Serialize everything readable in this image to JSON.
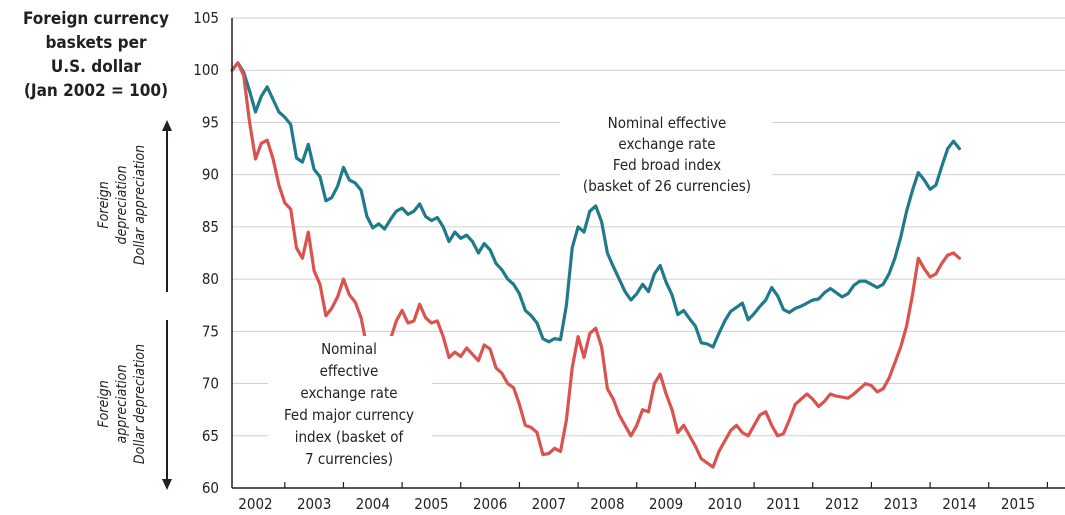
{
  "chart_data": {
    "type": "line",
    "ylabel_lines": [
      "Foreign currency",
      "baskets per",
      "U.S. dollar",
      "(Jan 2002 = 100)"
    ],
    "ylim": [
      60,
      105
    ],
    "yticks": [
      60,
      65,
      70,
      75,
      80,
      85,
      90,
      95,
      100,
      105
    ],
    "xlim": [
      2001.6,
      2015.8
    ],
    "xticks": [
      "2002",
      "2003",
      "2004",
      "2005",
      "2006",
      "2007",
      "2008",
      "2009",
      "2010",
      "2011",
      "2012",
      "2013",
      "2014",
      "2015"
    ],
    "grid": true,
    "upper_side_label": [
      "Foreign",
      "depreciation",
      "Dollar appreciation"
    ],
    "lower_side_label": [
      "Foreign",
      "appreciation",
      "Dollar depreciation"
    ],
    "series": [
      {
        "label_lines": [
          "Nominal effective",
          "exchange rate",
          "Fed broad index",
          "(basket of 26 currencies)"
        ],
        "color": "#1f7a8c",
        "points": [
          [
            2001.6,
            100.0
          ],
          [
            2001.7,
            100.7
          ],
          [
            2001.8,
            99.8
          ],
          [
            2001.9,
            98.0
          ],
          [
            2002.0,
            96.0
          ],
          [
            2002.1,
            97.5
          ],
          [
            2002.2,
            98.4
          ],
          [
            2002.3,
            97.2
          ],
          [
            2002.4,
            96.0
          ],
          [
            2002.5,
            95.5
          ],
          [
            2002.6,
            94.8
          ],
          [
            2002.7,
            91.6
          ],
          [
            2002.8,
            91.2
          ],
          [
            2002.9,
            92.9
          ],
          [
            2003.0,
            90.5
          ],
          [
            2003.1,
            89.8
          ],
          [
            2003.2,
            87.5
          ],
          [
            2003.3,
            87.8
          ],
          [
            2003.4,
            88.9
          ],
          [
            2003.5,
            90.7
          ],
          [
            2003.6,
            89.5
          ],
          [
            2003.7,
            89.2
          ],
          [
            2003.8,
            88.5
          ],
          [
            2003.9,
            86.0
          ],
          [
            2004.0,
            84.9
          ],
          [
            2004.1,
            85.3
          ],
          [
            2004.2,
            84.8
          ],
          [
            2004.3,
            85.7
          ],
          [
            2004.4,
            86.5
          ],
          [
            2004.5,
            86.8
          ],
          [
            2004.6,
            86.2
          ],
          [
            2004.7,
            86.5
          ],
          [
            2004.8,
            87.2
          ],
          [
            2004.9,
            86.0
          ],
          [
            2005.0,
            85.6
          ],
          [
            2005.1,
            85.9
          ],
          [
            2005.2,
            85.0
          ],
          [
            2005.3,
            83.6
          ],
          [
            2005.4,
            84.5
          ],
          [
            2005.5,
            83.9
          ],
          [
            2005.6,
            84.2
          ],
          [
            2005.7,
            83.6
          ],
          [
            2005.8,
            82.5
          ],
          [
            2005.9,
            83.4
          ],
          [
            2006.0,
            82.8
          ],
          [
            2006.1,
            81.5
          ],
          [
            2006.2,
            80.9
          ],
          [
            2006.3,
            80.0
          ],
          [
            2006.4,
            79.5
          ],
          [
            2006.5,
            78.6
          ],
          [
            2006.6,
            77.0
          ],
          [
            2006.7,
            76.5
          ],
          [
            2006.8,
            75.8
          ],
          [
            2006.9,
            74.3
          ],
          [
            2007.0,
            74.0
          ],
          [
            2007.1,
            74.3
          ],
          [
            2007.2,
            74.2
          ],
          [
            2007.3,
            77.5
          ],
          [
            2007.4,
            83.0
          ],
          [
            2007.5,
            85.0
          ],
          [
            2007.6,
            84.5
          ],
          [
            2007.7,
            86.5
          ],
          [
            2007.8,
            87.0
          ],
          [
            2007.9,
            85.5
          ],
          [
            2008.0,
            82.5
          ],
          [
            2008.1,
            81.2
          ],
          [
            2008.2,
            80.0
          ],
          [
            2008.3,
            78.8
          ],
          [
            2008.4,
            78.0
          ],
          [
            2008.5,
            78.6
          ],
          [
            2008.6,
            79.5
          ],
          [
            2008.7,
            78.8
          ],
          [
            2008.8,
            80.5
          ],
          [
            2008.9,
            81.3
          ],
          [
            2009.0,
            79.7
          ],
          [
            2009.1,
            78.5
          ],
          [
            2009.2,
            76.6
          ],
          [
            2009.3,
            77.0
          ],
          [
            2009.4,
            76.2
          ],
          [
            2009.5,
            75.5
          ],
          [
            2009.6,
            73.9
          ],
          [
            2009.7,
            73.8
          ],
          [
            2009.8,
            73.5
          ],
          [
            2009.9,
            74.8
          ],
          [
            2010.0,
            76.0
          ],
          [
            2010.1,
            76.9
          ],
          [
            2010.2,
            77.3
          ],
          [
            2010.3,
            77.7
          ],
          [
            2010.4,
            76.1
          ],
          [
            2010.5,
            76.7
          ],
          [
            2010.6,
            77.4
          ],
          [
            2010.7,
            78.0
          ],
          [
            2010.8,
            79.2
          ],
          [
            2010.9,
            78.4
          ],
          [
            2011.0,
            77.1
          ],
          [
            2011.1,
            76.8
          ],
          [
            2011.2,
            77.2
          ],
          [
            2011.3,
            77.4
          ],
          [
            2011.4,
            77.7
          ],
          [
            2011.5,
            78.0
          ],
          [
            2011.6,
            78.1
          ],
          [
            2011.7,
            78.7
          ],
          [
            2011.8,
            79.1
          ],
          [
            2011.9,
            78.7
          ],
          [
            2012.0,
            78.3
          ],
          [
            2012.1,
            78.6
          ],
          [
            2012.2,
            79.4
          ],
          [
            2012.3,
            79.8
          ],
          [
            2012.4,
            79.8
          ],
          [
            2012.5,
            79.5
          ],
          [
            2012.6,
            79.2
          ],
          [
            2012.7,
            79.5
          ],
          [
            2012.8,
            80.5
          ],
          [
            2012.9,
            82.0
          ],
          [
            2013.0,
            84.0
          ],
          [
            2013.1,
            86.5
          ],
          [
            2013.2,
            88.5
          ],
          [
            2013.3,
            90.2
          ],
          [
            2013.4,
            89.5
          ],
          [
            2013.5,
            88.6
          ],
          [
            2013.6,
            89.0
          ],
          [
            2013.7,
            90.8
          ],
          [
            2013.8,
            92.5
          ],
          [
            2013.9,
            93.2
          ],
          [
            2014.0,
            92.5
          ]
        ]
      },
      {
        "label_lines": [
          "Nominal",
          "effective",
          "exchange rate",
          "Fed major currency",
          "index (basket of",
          "7 currencies)"
        ],
        "color": "#d9534f",
        "points": [
          [
            2001.6,
            100.0
          ],
          [
            2001.7,
            100.7
          ],
          [
            2001.8,
            99.5
          ],
          [
            2001.9,
            95.0
          ],
          [
            2002.0,
            91.5
          ],
          [
            2002.1,
            93.0
          ],
          [
            2002.2,
            93.3
          ],
          [
            2002.3,
            91.5
          ],
          [
            2002.4,
            89.0
          ],
          [
            2002.5,
            87.3
          ],
          [
            2002.6,
            86.7
          ],
          [
            2002.7,
            83.0
          ],
          [
            2002.8,
            82.0
          ],
          [
            2002.9,
            84.5
          ],
          [
            2003.0,
            80.8
          ],
          [
            2003.1,
            79.5
          ],
          [
            2003.2,
            76.5
          ],
          [
            2003.3,
            77.2
          ],
          [
            2003.4,
            78.3
          ],
          [
            2003.5,
            80.0
          ],
          [
            2003.6,
            78.5
          ],
          [
            2003.7,
            77.8
          ],
          [
            2003.8,
            76.3
          ],
          [
            2003.9,
            73.5
          ],
          [
            2004.0,
            72.0
          ],
          [
            2004.1,
            73.0
          ],
          [
            2004.2,
            72.8
          ],
          [
            2004.3,
            74.2
          ],
          [
            2004.4,
            76.0
          ],
          [
            2004.5,
            77.0
          ],
          [
            2004.6,
            75.8
          ],
          [
            2004.7,
            76.0
          ],
          [
            2004.8,
            77.6
          ],
          [
            2004.9,
            76.3
          ],
          [
            2005.0,
            75.8
          ],
          [
            2005.1,
            76.0
          ],
          [
            2005.2,
            74.5
          ],
          [
            2005.3,
            72.5
          ],
          [
            2005.4,
            73.0
          ],
          [
            2005.5,
            72.6
          ],
          [
            2005.6,
            73.4
          ],
          [
            2005.7,
            72.8
          ],
          [
            2005.8,
            72.2
          ],
          [
            2005.9,
            73.7
          ],
          [
            2006.0,
            73.3
          ],
          [
            2006.1,
            71.5
          ],
          [
            2006.2,
            71.0
          ],
          [
            2006.3,
            70.0
          ],
          [
            2006.4,
            69.6
          ],
          [
            2006.5,
            68.0
          ],
          [
            2006.6,
            66.0
          ],
          [
            2006.7,
            65.8
          ],
          [
            2006.8,
            65.3
          ],
          [
            2006.9,
            63.2
          ],
          [
            2007.0,
            63.3
          ],
          [
            2007.1,
            63.8
          ],
          [
            2007.2,
            63.5
          ],
          [
            2007.3,
            66.5
          ],
          [
            2007.4,
            71.5
          ],
          [
            2007.5,
            74.5
          ],
          [
            2007.6,
            72.5
          ],
          [
            2007.7,
            74.8
          ],
          [
            2007.8,
            75.3
          ],
          [
            2007.9,
            73.5
          ],
          [
            2008.0,
            69.5
          ],
          [
            2008.1,
            68.5
          ],
          [
            2008.2,
            67.0
          ],
          [
            2008.3,
            66.0
          ],
          [
            2008.4,
            65.0
          ],
          [
            2008.5,
            66.0
          ],
          [
            2008.6,
            67.5
          ],
          [
            2008.7,
            67.3
          ],
          [
            2008.8,
            70.0
          ],
          [
            2008.9,
            70.9
          ],
          [
            2009.0,
            69.0
          ],
          [
            2009.1,
            67.5
          ],
          [
            2009.2,
            65.3
          ],
          [
            2009.3,
            66.0
          ],
          [
            2009.4,
            65.0
          ],
          [
            2009.5,
            64.0
          ],
          [
            2009.6,
            62.8
          ],
          [
            2009.7,
            62.4
          ],
          [
            2009.8,
            62.0
          ],
          [
            2009.9,
            63.5
          ],
          [
            2010.0,
            64.5
          ],
          [
            2010.1,
            65.5
          ],
          [
            2010.2,
            66.0
          ],
          [
            2010.3,
            65.3
          ],
          [
            2010.4,
            65.0
          ],
          [
            2010.5,
            66.0
          ],
          [
            2010.6,
            67.0
          ],
          [
            2010.7,
            67.3
          ],
          [
            2010.8,
            66.0
          ],
          [
            2010.9,
            65.0
          ],
          [
            2011.0,
            65.2
          ],
          [
            2011.1,
            66.5
          ],
          [
            2011.2,
            68.0
          ],
          [
            2011.3,
            68.5
          ],
          [
            2011.4,
            69.0
          ],
          [
            2011.5,
            68.5
          ],
          [
            2011.6,
            67.8
          ],
          [
            2011.7,
            68.3
          ],
          [
            2011.8,
            69.0
          ],
          [
            2011.9,
            68.8
          ],
          [
            2012.0,
            68.7
          ],
          [
            2012.1,
            68.6
          ],
          [
            2012.2,
            69.0
          ],
          [
            2012.3,
            69.5
          ],
          [
            2012.4,
            70.0
          ],
          [
            2012.5,
            69.8
          ],
          [
            2012.6,
            69.2
          ],
          [
            2012.7,
            69.5
          ],
          [
            2012.8,
            70.5
          ],
          [
            2012.9,
            72.0
          ],
          [
            2013.0,
            73.5
          ],
          [
            2013.1,
            75.5
          ],
          [
            2013.2,
            78.5
          ],
          [
            2013.3,
            82.0
          ],
          [
            2013.4,
            81.0
          ],
          [
            2013.5,
            80.2
          ],
          [
            2013.6,
            80.5
          ],
          [
            2013.7,
            81.5
          ],
          [
            2013.8,
            82.3
          ],
          [
            2013.9,
            82.5
          ],
          [
            2014.0,
            82.0
          ]
        ]
      }
    ]
  }
}
